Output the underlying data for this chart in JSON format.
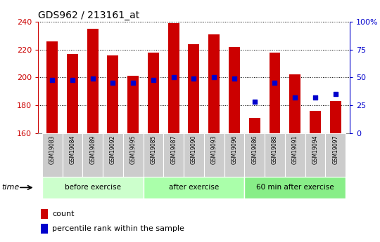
{
  "title": "GDS962 / 213161_at",
  "samples": [
    "GSM19083",
    "GSM19084",
    "GSM19089",
    "GSM19092",
    "GSM19095",
    "GSM19085",
    "GSM19087",
    "GSM19090",
    "GSM19093",
    "GSM19096",
    "GSM19086",
    "GSM19088",
    "GSM19091",
    "GSM19094",
    "GSM19097"
  ],
  "bar_values": [
    226,
    217,
    235,
    216,
    201,
    218,
    239,
    224,
    231,
    222,
    171,
    218,
    202,
    176,
    183
  ],
  "bar_bottom": 160,
  "percentile_pct": [
    48,
    48,
    49,
    45,
    45,
    48,
    50,
    49,
    50,
    49,
    28,
    45,
    32,
    32,
    35
  ],
  "groups": [
    {
      "label": "before exercise",
      "start": 0,
      "end": 5,
      "color": "#ccffcc"
    },
    {
      "label": "after exercise",
      "start": 5,
      "end": 10,
      "color": "#aaffaa"
    },
    {
      "label": "60 min after exercise",
      "start": 10,
      "end": 15,
      "color": "#88ee88"
    }
  ],
  "ylim": [
    160,
    240
  ],
  "y2lim": [
    0,
    100
  ],
  "yticks": [
    160,
    180,
    200,
    220,
    240
  ],
  "y2ticks": [
    0,
    25,
    50,
    75,
    100
  ],
  "y2ticklabels": [
    "0",
    "25",
    "50",
    "75",
    "100%"
  ],
  "bar_color": "#cc0000",
  "dot_color": "#0000cc",
  "grid_color": "#000000",
  "bg_color": "#ffffff",
  "tick_color_left": "#cc0000",
  "tick_color_right": "#0000cc",
  "legend_count_label": "count",
  "legend_pct_label": "percentile rank within the sample",
  "time_label": "time",
  "bar_width": 0.55,
  "sample_bg_color": "#cccccc",
  "figsize": [
    5.4,
    3.45
  ],
  "dpi": 100
}
